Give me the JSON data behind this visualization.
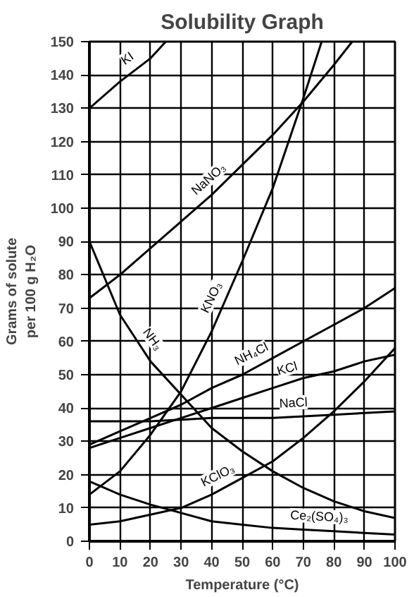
{
  "chart_data": {
    "type": "line",
    "title": "Solubility Graph",
    "xlabel": "Temperature (°C)",
    "ylabel": "Grams of solute\nper 100 g H₂O",
    "xlim": [
      0,
      100
    ],
    "ylim": [
      0,
      150
    ],
    "xticks": [
      0,
      10,
      20,
      30,
      40,
      50,
      60,
      70,
      80,
      90,
      100
    ],
    "yticks": [
      0,
      10,
      20,
      30,
      40,
      50,
      60,
      70,
      80,
      90,
      100,
      110,
      120,
      130,
      140,
      150
    ],
    "grid": true,
    "marker": "none",
    "line_style": "solid",
    "series": [
      {
        "color": "#000000",
        "x": [
          0,
          10,
          20,
          25
        ],
        "values": [
          130,
          138,
          145,
          150
        ]
      },
      {
        "color": "#000000",
        "x": [
          0,
          10,
          20,
          30,
          40,
          50,
          60,
          70,
          80,
          86
        ],
        "values": [
          73,
          80,
          88,
          96,
          104,
          113,
          122,
          132,
          143,
          150
        ]
      },
      {
        "color": "#000000",
        "x": [
          0,
          10,
          20,
          30,
          40,
          50,
          60,
          70,
          76
        ],
        "values": [
          14,
          21,
          32,
          45,
          63,
          84,
          106,
          133,
          150
        ]
      },
      {
        "color": "#000000",
        "x": [
          0,
          10,
          20,
          30,
          40,
          50,
          60,
          70,
          80,
          90,
          100
        ],
        "values": [
          90,
          68,
          54,
          44,
          34,
          27,
          21,
          16,
          12,
          9,
          7
        ]
      },
      {
        "color": "#000000",
        "x": [
          0,
          10,
          20,
          30,
          40,
          50,
          60,
          70,
          80,
          90,
          100
        ],
        "values": [
          29,
          33,
          37,
          41,
          46,
          50,
          55,
          60,
          65,
          70,
          76
        ]
      },
      {
        "color": "#000000",
        "x": [
          0,
          10,
          20,
          30,
          40,
          50,
          60,
          70,
          80,
          90,
          100
        ],
        "values": [
          28,
          31,
          34,
          37,
          40,
          43,
          46,
          49,
          51,
          54,
          56
        ]
      },
      {
        "color": "#000000",
        "x": [
          0,
          20,
          40,
          60,
          80,
          100
        ],
        "values": [
          36,
          36,
          37,
          37,
          38,
          39
        ]
      },
      {
        "color": "#000000",
        "x": [
          0,
          10,
          20,
          30,
          40,
          50,
          60,
          70,
          80,
          90,
          100
        ],
        "values": [
          5,
          6,
          8,
          10,
          14,
          19,
          24,
          31,
          39,
          48,
          58
        ]
      },
      {
        "color": "#000000",
        "x": [
          0,
          10,
          20,
          30,
          40,
          50,
          60,
          70,
          80,
          90,
          100
        ],
        "values": [
          18,
          14,
          11,
          8.5,
          6,
          5,
          4,
          3.5,
          3,
          2.5,
          2
        ]
      }
    ],
    "annotations": [
      {
        "text": "KI",
        "x": 15,
        "y": 141.5
      },
      {
        "text": "NaNO₃",
        "x": 42,
        "y": 105.6
      },
      {
        "text": "KNO₃",
        "x": 44,
        "y": 71.4
      },
      {
        "text": "NH₃",
        "x": 17,
        "y": 58.2
      },
      {
        "text": "NH₄Cl",
        "x": 55,
        "y": 52.5
      },
      {
        "text": "KCl",
        "x": 66,
        "y": 47.8
      },
      {
        "text": "NaCl",
        "x": 67,
        "y": 37.35
      },
      {
        "text": "KClO₃",
        "x": 44,
        "y": 16
      },
      {
        "text": "Ce₂(SO₄)₃",
        "x": 75,
        "y": 3.25
      }
    ]
  }
}
